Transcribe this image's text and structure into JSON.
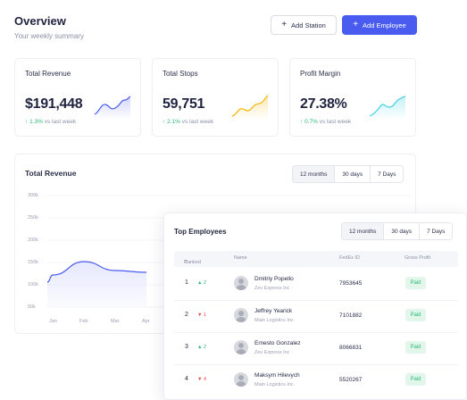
{
  "header": {
    "title": "Overview",
    "subtitle": "Your weekly summary"
  },
  "actions": {
    "add_station": "Add Station",
    "add_employee": "Add Employee"
  },
  "metrics": [
    {
      "title": "Total Revenue",
      "value": "$191,448",
      "change": "1.3%",
      "change_suffix": "vs last week",
      "color": "#4a5cf0"
    },
    {
      "title": "Total Stops",
      "value": "59,751",
      "change": "2.1%",
      "change_suffix": "vs last week",
      "color": "#f4b400"
    },
    {
      "title": "Profit Margin",
      "value": "27.38%",
      "change": "0.7%",
      "change_suffix": "vs last week",
      "color": "#3fd0e0"
    }
  ],
  "revenue_chart": {
    "title": "Total Revenue",
    "ranges": [
      "12 months",
      "30 days",
      "7 Days"
    ],
    "selected_range": "12 months",
    "y_ticks": [
      "300k",
      "250k",
      "200k",
      "150k",
      "100k",
      "50k"
    ],
    "x_ticks": [
      "Jan",
      "Feb",
      "Mar",
      "Apr"
    ]
  },
  "chart_data": {
    "type": "area",
    "title": "Total Revenue",
    "categories": [
      "Jan",
      "Feb",
      "Mar",
      "Apr"
    ],
    "values": [
      122000,
      152000,
      132000,
      128000
    ],
    "ylim": [
      50000,
      300000
    ],
    "grid": true,
    "color": "#4a5cf0"
  },
  "top_employees": {
    "title": "Top Employees",
    "ranges": [
      "12 months",
      "30 days",
      "7 Days"
    ],
    "selected_range": "12 months",
    "columns": {
      "ranked": "Ranked",
      "name": "Name",
      "fedex_id": "FedEx ID",
      "gross_profit": "Gross Profit"
    },
    "rows": [
      {
        "rank": "1",
        "dir": "up",
        "delta": "2",
        "name": "Dmitriy Popello",
        "company": "Zev Express Inc",
        "fedex_id": "7953645",
        "status": "Paid"
      },
      {
        "rank": "2",
        "dir": "down",
        "delta": "1",
        "name": "Jeffrey Yearick",
        "company": "Main Logistics Inc",
        "fedex_id": "7101882",
        "status": "Paid"
      },
      {
        "rank": "3",
        "dir": "up",
        "delta": "2",
        "name": "Ernesto Gonzalez",
        "company": "Zev Express Inc",
        "fedex_id": "8066831",
        "status": "Paid"
      },
      {
        "rank": "4",
        "dir": "down",
        "delta": "4",
        "name": "Maksym Hilevych",
        "company": "Main Logistics Inc",
        "fedex_id": "5520267",
        "status": "Paid"
      }
    ]
  }
}
